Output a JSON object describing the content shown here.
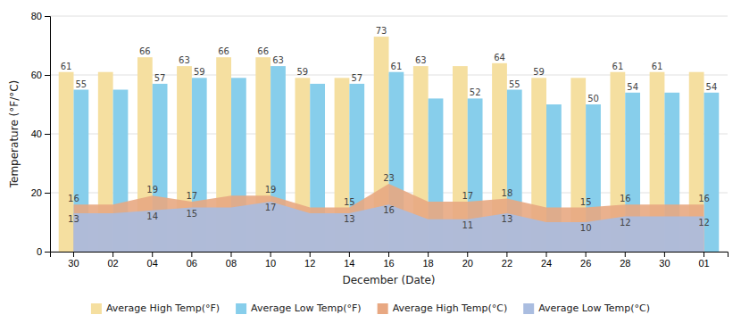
{
  "chart_data": {
    "type": "bar",
    "categories": [
      "30",
      "02",
      "04",
      "06",
      "08",
      "10",
      "12",
      "14",
      "16",
      "18",
      "20",
      "22",
      "24",
      "26",
      "28",
      "30",
      "01"
    ],
    "xlabel": "December (Date)",
    "ylabel": "Temperature (°F/°C)",
    "ylim": [
      0,
      80
    ],
    "yticks": [
      0,
      20,
      40,
      60,
      80
    ],
    "grid": true,
    "legend": "bottom",
    "data_labels": true,
    "series": [
      {
        "name": "Average High Temp(°F)",
        "type": "bar",
        "color": "#F5DFA0",
        "values": [
          61,
          61,
          66,
          63,
          66,
          66,
          59,
          59,
          73,
          63,
          63,
          64,
          59,
          59,
          61,
          61,
          61
        ],
        "value_labels": [
          "61",
          null,
          "66",
          "63",
          "66",
          "66",
          "59",
          null,
          "73",
          "63",
          null,
          "64",
          "59",
          null,
          "61",
          "61",
          null
        ]
      },
      {
        "name": "Average Low Temp(°F)",
        "type": "bar",
        "color": "#87CEEB",
        "values": [
          55,
          55,
          57,
          59,
          59,
          63,
          57,
          57,
          61,
          52,
          52,
          55,
          50,
          50,
          54,
          54,
          54
        ],
        "value_labels": [
          "55",
          null,
          "57",
          "59",
          null,
          "63",
          null,
          "57",
          "61",
          null,
          "52",
          "55",
          null,
          "50",
          "54",
          null,
          "54"
        ]
      },
      {
        "name": "Average High Temp(°C)",
        "type": "area",
        "color": "#E8A882",
        "values": [
          16,
          16,
          19,
          17,
          19,
          19,
          15,
          15,
          23,
          17,
          17,
          18,
          15,
          15,
          16,
          16,
          16
        ],
        "value_labels": [
          "16",
          null,
          "19",
          "17",
          null,
          "19",
          null,
          "15",
          "23",
          null,
          "17",
          "18",
          null,
          "15",
          "16",
          null,
          "16"
        ]
      },
      {
        "name": "Average Low Temp(°C)",
        "type": "area",
        "color": "#AABDE0",
        "values": [
          13,
          13,
          14,
          15,
          15,
          17,
          13,
          13,
          16,
          11,
          11,
          13,
          10,
          10,
          12,
          12,
          12
        ],
        "value_labels": [
          "13",
          null,
          "14",
          "15",
          null,
          "17",
          null,
          "13",
          "16",
          null,
          "11",
          "13",
          null,
          "10",
          "12",
          null,
          "12"
        ]
      }
    ]
  }
}
